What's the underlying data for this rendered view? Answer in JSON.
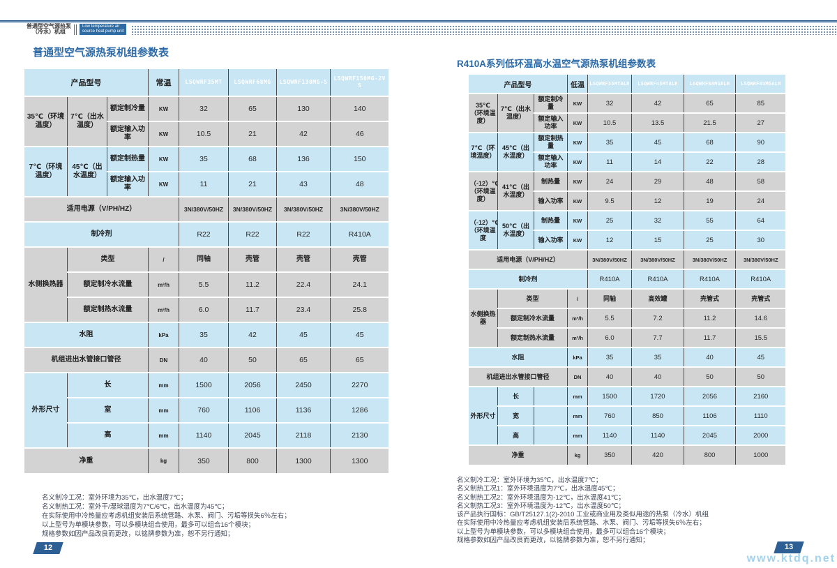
{
  "masthead": {
    "product_cn_line1": "普通型空气源热泵",
    "product_cn_line2": "（冷水）机组",
    "badge_line1": "Low temperature air",
    "badge_line2": "source heat pump unit"
  },
  "colors": {
    "accent_blue": "#2d5f94",
    "title_blue": "#2d6ba8",
    "row_blue": "#c9e6f4",
    "row_gray": "#d3d3d3"
  },
  "left": {
    "title": "普通型空气源热泵机组参数表",
    "page_number": "12",
    "rows": [
      {
        "band": "blue",
        "hdr": true,
        "c": [
          {
            "t": "产品型号",
            "cs": 3,
            "k": "hdr"
          },
          {
            "t": "常温",
            "k": "hdr"
          },
          {
            "t": "LSQWRF35MT",
            "k": "model"
          },
          {
            "t": "LSQWRF68MG",
            "k": "model"
          },
          {
            "t": "LSQWRF130MG-S",
            "k": "model"
          },
          {
            "t": "LSQWRF150MG-2VS",
            "k": "model"
          }
        ]
      },
      {
        "band": "gray",
        "c": [
          {
            "t": "35℃（环境温度）",
            "rs": 2,
            "k": "lbl"
          },
          {
            "t": "7℃（出水温度）",
            "rs": 2,
            "k": "lbl"
          },
          {
            "t": "额定制冷量",
            "k": "lbl"
          },
          {
            "t": "KW",
            "k": "unit"
          },
          {
            "t": "32"
          },
          {
            "t": "65"
          },
          {
            "t": "130"
          },
          {
            "t": "140"
          }
        ]
      },
      {
        "band": "gray",
        "c": [
          {
            "t": "额定输入功率",
            "k": "lbl"
          },
          {
            "t": "KW",
            "k": "unit"
          },
          {
            "t": "10.5"
          },
          {
            "t": "21"
          },
          {
            "t": "42"
          },
          {
            "t": "46"
          }
        ]
      },
      {
        "band": "blue",
        "c": [
          {
            "t": "7℃（环境温度）",
            "rs": 2,
            "k": "lbl"
          },
          {
            "t": "45℃（出水温度）",
            "rs": 2,
            "k": "lbl"
          },
          {
            "t": "额定制热量",
            "k": "lbl"
          },
          {
            "t": "KW",
            "k": "unit"
          },
          {
            "t": "35"
          },
          {
            "t": "68"
          },
          {
            "t": "136"
          },
          {
            "t": "150"
          }
        ]
      },
      {
        "band": "blue",
        "c": [
          {
            "t": "额定输入功率",
            "k": "lbl"
          },
          {
            "t": "KW",
            "k": "unit"
          },
          {
            "t": "11"
          },
          {
            "t": "21"
          },
          {
            "t": "43"
          },
          {
            "t": "48"
          }
        ]
      },
      {
        "band": "gray",
        "c": [
          {
            "t": "适用电源（V/PH/HZ）",
            "cs": 4,
            "k": "lbl"
          },
          {
            "t": "3N/380V/50HZ",
            "k": "pw"
          },
          {
            "t": "3N/380V/50HZ",
            "k": "pw"
          },
          {
            "t": "3N/380V/50HZ",
            "k": "pw"
          },
          {
            "t": "3N/380V/50HZ",
            "k": "pw"
          }
        ]
      },
      {
        "band": "blue",
        "c": [
          {
            "t": "制冷剂",
            "cs": 4,
            "k": "lbl"
          },
          {
            "t": "R22"
          },
          {
            "t": "R22"
          },
          {
            "t": "R22"
          },
          {
            "t": "R410A"
          }
        ]
      },
      {
        "band": "gray",
        "c": [
          {
            "t": "水侧换热器",
            "rs": 3,
            "k": "lbl"
          },
          {
            "t": "类型",
            "cs": 2,
            "k": "lbl"
          },
          {
            "t": "/",
            "k": "unit"
          },
          {
            "t": "同轴",
            "k": "lbl"
          },
          {
            "t": "壳管",
            "k": "lbl"
          },
          {
            "t": "壳管",
            "k": "lbl"
          },
          {
            "t": "壳管",
            "k": "lbl"
          }
        ]
      },
      {
        "band": "gray",
        "c": [
          {
            "t": "额定制冷水流量",
            "cs": 2,
            "k": "lbl"
          },
          {
            "t": "m³/h",
            "k": "unit"
          },
          {
            "t": "5.5"
          },
          {
            "t": "11.2"
          },
          {
            "t": "22.4"
          },
          {
            "t": "24.1"
          }
        ]
      },
      {
        "band": "gray",
        "c": [
          {
            "t": "额定制热水流量",
            "cs": 2,
            "k": "lbl"
          },
          {
            "t": "m³/h",
            "k": "unit"
          },
          {
            "t": "6.0"
          },
          {
            "t": "11.7"
          },
          {
            "t": "23.4"
          },
          {
            "t": "25.8"
          }
        ]
      },
      {
        "band": "blue",
        "c": [
          {
            "t": "水阻",
            "cs": 3,
            "k": "lbl"
          },
          {
            "t": "kPa",
            "k": "unit"
          },
          {
            "t": "35"
          },
          {
            "t": "42"
          },
          {
            "t": "45"
          },
          {
            "t": "45"
          }
        ]
      },
      {
        "band": "gray",
        "c": [
          {
            "t": "机组进出水管接口管径",
            "cs": 3,
            "k": "lbl"
          },
          {
            "t": "DN",
            "k": "unit"
          },
          {
            "t": "40"
          },
          {
            "t": "50"
          },
          {
            "t": "65"
          },
          {
            "t": "65"
          }
        ]
      },
      {
        "band": "blue",
        "c": [
          {
            "t": "外形尺寸",
            "rs": 3,
            "k": "lbl"
          },
          {
            "t": "长",
            "cs": 2,
            "k": "lbl"
          },
          {
            "t": "mm",
            "k": "unit"
          },
          {
            "t": "1500"
          },
          {
            "t": "2056"
          },
          {
            "t": "2450"
          },
          {
            "t": "2270"
          }
        ]
      },
      {
        "band": "blue",
        "c": [
          {
            "t": "室",
            "cs": 2,
            "k": "lbl"
          },
          {
            "t": "mm",
            "k": "unit"
          },
          {
            "t": "760"
          },
          {
            "t": "1106"
          },
          {
            "t": "1136"
          },
          {
            "t": "1286"
          }
        ]
      },
      {
        "band": "blue",
        "c": [
          {
            "t": "高",
            "cs": 2,
            "k": "lbl"
          },
          {
            "t": "mm",
            "k": "unit"
          },
          {
            "t": "1140"
          },
          {
            "t": "2045"
          },
          {
            "t": "2118"
          },
          {
            "t": "2130"
          }
        ]
      },
      {
        "band": "gray",
        "c": [
          {
            "t": "净重",
            "cs": 3,
            "k": "lbl"
          },
          {
            "t": "kg",
            "k": "unit"
          },
          {
            "t": "350"
          },
          {
            "t": "800"
          },
          {
            "t": "1300"
          },
          {
            "t": "1300"
          }
        ]
      }
    ],
    "footnotes": [
      "名义制冷工况：室外环境为35℃，出水温度7℃；",
      "名义制热工况：室外干/湿球温度为7℃/6℃，出水温度为45℃；",
      "在实际使用中冷热量应考虑机组安装后系统管路、水泵、阀门、污垢等损失6％左右；",
      "以上型号为单模块参数，可以多模块组合使用，最多可以组合16个模块；",
      "规格参数如因产品改良而更改，以铭牌参数为准，恕不另行通知；"
    ]
  },
  "right": {
    "title": "R410A系列低环温高水温空气源热泵机组参数表",
    "page_number": "13",
    "watermark": "www.ktdq.net",
    "rows": [
      {
        "band": "blue",
        "hdr": true,
        "c": [
          {
            "t": "产品型号",
            "cs": 3,
            "k": "hdr"
          },
          {
            "t": "低温",
            "k": "hdr"
          },
          {
            "t": "LSQWRF35MTALH",
            "k": "model"
          },
          {
            "t": "LSQWRF45MTALH",
            "k": "model"
          },
          {
            "t": "LSQWRF68MGALH",
            "k": "model"
          },
          {
            "t": "LSQWRF85MGALH",
            "k": "model"
          }
        ]
      },
      {
        "band": "gray",
        "c": [
          {
            "t": "35℃（环境温度）",
            "rs": 2,
            "k": "lbl"
          },
          {
            "t": "7℃（出水温度）",
            "rs": 2,
            "k": "lbl"
          },
          {
            "t": "额定制冷量",
            "k": "lbl"
          },
          {
            "t": "KW",
            "k": "unit"
          },
          {
            "t": "32"
          },
          {
            "t": "42"
          },
          {
            "t": "65"
          },
          {
            "t": "85"
          }
        ]
      },
      {
        "band": "gray",
        "c": [
          {
            "t": "额定输入功率",
            "k": "lbl"
          },
          {
            "t": "KW",
            "k": "unit"
          },
          {
            "t": "10.5"
          },
          {
            "t": "13.5"
          },
          {
            "t": "21.5"
          },
          {
            "t": "27"
          }
        ]
      },
      {
        "band": "blue",
        "c": [
          {
            "t": "7℃（环境温度）",
            "rs": 2,
            "k": "lbl"
          },
          {
            "t": "45℃（出水温度）",
            "rs": 2,
            "k": "lbl"
          },
          {
            "t": "额定制热量",
            "k": "lbl"
          },
          {
            "t": "KW",
            "k": "unit"
          },
          {
            "t": "35"
          },
          {
            "t": "45"
          },
          {
            "t": "68"
          },
          {
            "t": "90"
          }
        ]
      },
      {
        "band": "blue",
        "c": [
          {
            "t": "额定输入功率",
            "k": "lbl"
          },
          {
            "t": "KW",
            "k": "unit"
          },
          {
            "t": "11"
          },
          {
            "t": "14"
          },
          {
            "t": "22"
          },
          {
            "t": "28"
          }
        ]
      },
      {
        "band": "gray",
        "c": [
          {
            "t": "（-12）℃（环境温度）",
            "rs": 2,
            "k": "lbl"
          },
          {
            "t": "41℃（出水温度）",
            "rs": 2,
            "k": "lbl"
          },
          {
            "t": "制热量",
            "k": "lbl"
          },
          {
            "t": "KW",
            "k": "unit"
          },
          {
            "t": "24"
          },
          {
            "t": "29"
          },
          {
            "t": "48"
          },
          {
            "t": "58"
          }
        ]
      },
      {
        "band": "gray",
        "c": [
          {
            "t": "输入功率",
            "k": "lbl"
          },
          {
            "t": "KW",
            "k": "unit"
          },
          {
            "t": "9.5"
          },
          {
            "t": "12"
          },
          {
            "t": "19"
          },
          {
            "t": "24"
          }
        ]
      },
      {
        "band": "blue",
        "c": [
          {
            "t": "（-12）℃（环境温度",
            "rs": 2,
            "k": "lbl"
          },
          {
            "t": "50℃（出水温度）",
            "rs": 2,
            "k": "lbl"
          },
          {
            "t": "制热量",
            "k": "lbl"
          },
          {
            "t": "KW",
            "k": "unit"
          },
          {
            "t": "25"
          },
          {
            "t": "32"
          },
          {
            "t": "55"
          },
          {
            "t": "64"
          }
        ]
      },
      {
        "band": "blue",
        "c": [
          {
            "t": "输入功率",
            "k": "lbl"
          },
          {
            "t": "KW",
            "k": "unit"
          },
          {
            "t": "12"
          },
          {
            "t": "15"
          },
          {
            "t": "25"
          },
          {
            "t": "30"
          }
        ]
      },
      {
        "band": "gray",
        "c": [
          {
            "t": "适用电源（V/PH/HZ）",
            "cs": 4,
            "k": "lbl"
          },
          {
            "t": "3N/380V/50HZ",
            "k": "pw"
          },
          {
            "t": "3N/380V/50HZ",
            "k": "pw"
          },
          {
            "t": "3N/380V/50HZ",
            "k": "pw"
          },
          {
            "t": "3N/380V/50HZ",
            "k": "pw"
          }
        ]
      },
      {
        "band": "blue",
        "c": [
          {
            "t": "制冷剂",
            "cs": 4,
            "k": "lbl"
          },
          {
            "t": "R410A"
          },
          {
            "t": "R410A"
          },
          {
            "t": "R410A"
          },
          {
            "t": "R410A"
          }
        ]
      },
      {
        "band": "gray",
        "c": [
          {
            "t": "水侧换热器",
            "rs": 3,
            "k": "lbl"
          },
          {
            "t": "类型",
            "cs": 2,
            "k": "lbl"
          },
          {
            "t": "/",
            "k": "unit"
          },
          {
            "t": "同轴",
            "k": "lbl"
          },
          {
            "t": "高效罐",
            "k": "lbl"
          },
          {
            "t": "壳管式",
            "k": "lbl"
          },
          {
            "t": "壳管式",
            "k": "lbl"
          }
        ]
      },
      {
        "band": "gray",
        "c": [
          {
            "t": "额定制冷水流量",
            "cs": 2,
            "k": "lbl"
          },
          {
            "t": "m³/h",
            "k": "unit"
          },
          {
            "t": "5.5"
          },
          {
            "t": "7.2"
          },
          {
            "t": "11.2"
          },
          {
            "t": "14.6"
          }
        ]
      },
      {
        "band": "gray",
        "c": [
          {
            "t": "额定制热水流量",
            "cs": 2,
            "k": "lbl"
          },
          {
            "t": "m³/h",
            "k": "unit"
          },
          {
            "t": "6.0"
          },
          {
            "t": "7.7"
          },
          {
            "t": "11.7"
          },
          {
            "t": "15.5"
          }
        ]
      },
      {
        "band": "blue",
        "c": [
          {
            "t": "水阻",
            "cs": 3,
            "k": "lbl"
          },
          {
            "t": "kPa",
            "k": "unit"
          },
          {
            "t": "35"
          },
          {
            "t": "35"
          },
          {
            "t": "40"
          },
          {
            "t": "45"
          }
        ]
      },
      {
        "band": "gray",
        "c": [
          {
            "t": "机组进出水管接口管径",
            "cs": 3,
            "k": "lbl"
          },
          {
            "t": "DN",
            "k": "unit"
          },
          {
            "t": "40"
          },
          {
            "t": "40"
          },
          {
            "t": "50"
          },
          {
            "t": "50"
          }
        ]
      },
      {
        "band": "blue",
        "c": [
          {
            "t": "外形尺寸",
            "rs": 3,
            "k": "lbl"
          },
          {
            "t": "长",
            "k": "lbl"
          },
          {
            "t": "",
            "k": "empty"
          },
          {
            "t": "mm",
            "k": "unit"
          },
          {
            "t": "1500"
          },
          {
            "t": "1720"
          },
          {
            "t": "2056"
          },
          {
            "t": "2160"
          }
        ]
      },
      {
        "band": "blue",
        "c": [
          {
            "t": "宽",
            "k": "lbl"
          },
          {
            "t": "",
            "k": "empty"
          },
          {
            "t": "mm",
            "k": "unit"
          },
          {
            "t": "760"
          },
          {
            "t": "850"
          },
          {
            "t": "1106"
          },
          {
            "t": "1110"
          }
        ]
      },
      {
        "band": "blue",
        "c": [
          {
            "t": "高",
            "k": "lbl"
          },
          {
            "t": "",
            "k": "empty"
          },
          {
            "t": "mm",
            "k": "unit"
          },
          {
            "t": "1140"
          },
          {
            "t": "1140"
          },
          {
            "t": "2045"
          },
          {
            "t": "2000"
          }
        ]
      },
      {
        "band": "gray",
        "c": [
          {
            "t": "净重",
            "cs": 3,
            "k": "lbl"
          },
          {
            "t": "kg",
            "k": "unit"
          },
          {
            "t": "350"
          },
          {
            "t": "420"
          },
          {
            "t": "800"
          },
          {
            "t": "1000"
          }
        ]
      }
    ],
    "footnotes": [
      "名义制冷工况：室外环境为35℃，出水温度7℃；",
      "名义制热工况1：室外环境温度为7℃，出水温度45℃；",
      "名义制热工况2：室外环境温度为-12℃，出水温度41℃；",
      "名义制热工况3：室外环境温度为-12℃，出水温度50℃；",
      "该产品执行国标：GB/T25127.1(2)-2010 工业或商业用及类似用途的热泵（冷水）机组",
      "在实际使用中冷热量应考虑机组安装后系统管路、水泵、阀门、污垢等损失6％左右；",
      "以上型号为单模块参数，可以多模块组合使用，最多可以组合16个模块；",
      "规格参数如因产品改良而更改，以铭牌参数为准，恕不另行通知；"
    ]
  }
}
